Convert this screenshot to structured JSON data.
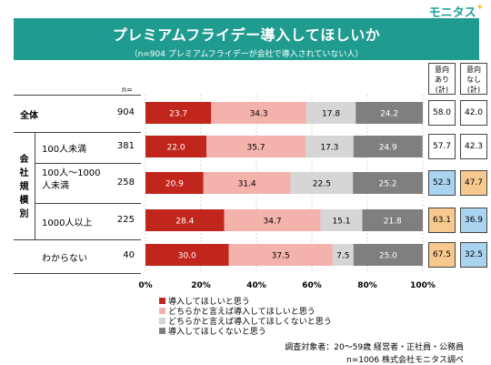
{
  "logo": "モニタス",
  "title": "プレミアムフライデー導入してほしいか",
  "subtitle": "（n=904 プレミアムフライデーが会社で導入されていない人）",
  "n_header": "n=",
  "side_label": [
    "会",
    "社",
    "規",
    "模",
    "別"
  ],
  "value_headers": [
    {
      "lines": [
        "意向",
        "あり",
        "(計)"
      ]
    },
    {
      "lines": [
        "意向",
        "なし",
        "(計)"
      ]
    }
  ],
  "chart_data": {
    "type": "bar",
    "orientation": "horizontal",
    "stacked": true,
    "categories": [
      "全体",
      "100人未満",
      "100人～1000人未満",
      "1000人以上",
      "わからない"
    ],
    "n": [
      904,
      381,
      258,
      225,
      40
    ],
    "series": [
      {
        "name": "導入してほしいと思う",
        "color": "#c0261c",
        "values": [
          23.7,
          22.0,
          20.9,
          28.4,
          30.0
        ]
      },
      {
        "name": "どちらかと言えば導入してほしいと思う",
        "color": "#f4b2ac",
        "values": [
          34.3,
          35.7,
          31.4,
          34.7,
          37.5
        ]
      },
      {
        "name": "どちらかと言えば導入してほしくないと思う",
        "color": "#d6d6d6",
        "values": [
          17.8,
          17.3,
          22.5,
          15.1,
          7.5
        ]
      },
      {
        "name": "導入してほしくないと思う",
        "color": "#7f7f7f",
        "values": [
          24.2,
          24.9,
          25.2,
          21.8,
          25.0
        ]
      }
    ],
    "intent_yes": [
      58.0,
      57.7,
      52.3,
      63.1,
      67.5
    ],
    "intent_no": [
      42.0,
      42.3,
      47.7,
      36.9,
      32.5
    ],
    "highlight_colors": {
      "high": "#f8c98f",
      "low": "#a9d3ef"
    },
    "xlim": [
      0,
      100
    ],
    "xticks": [
      "0%",
      "20%",
      "40%",
      "60%",
      "80%",
      "100%"
    ]
  },
  "footnotes": [
    "調査対象者：20～59歳 経営者・正社員・公務員",
    "n=1006 株式会社モニタス調べ"
  ]
}
